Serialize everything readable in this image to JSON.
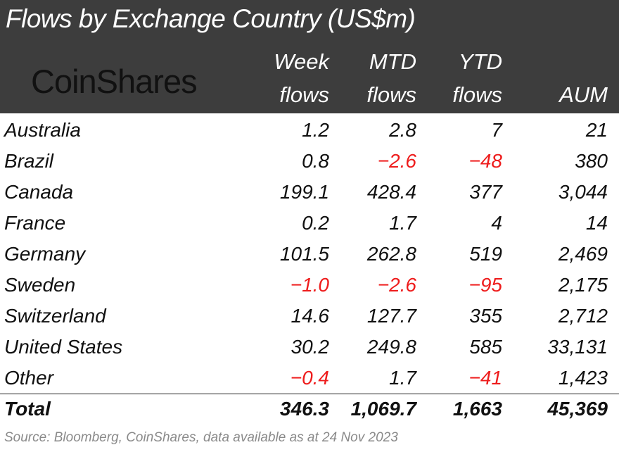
{
  "title": "Flows by Exchange Country (US$m)",
  "logo": "CoinShares",
  "columns": [
    {
      "line1": "Week",
      "line2": "flows"
    },
    {
      "line1": "MTD",
      "line2": "flows"
    },
    {
      "line1": "YTD",
      "line2": "flows"
    },
    {
      "line1": "",
      "line2": "AUM"
    }
  ],
  "colors": {
    "negative": "#ee1c1c",
    "header_bg": "#3d3d3d"
  },
  "rows": [
    {
      "name": "Australia",
      "week": "1.2",
      "mtd": "2.8",
      "ytd": "7",
      "aum": "21"
    },
    {
      "name": "Brazil",
      "week": "0.8",
      "mtd": "-2.6",
      "ytd": "-48",
      "aum": "380"
    },
    {
      "name": "Canada",
      "week": "199.1",
      "mtd": "428.4",
      "ytd": "377",
      "aum": "3,044"
    },
    {
      "name": "France",
      "week": "0.2",
      "mtd": "1.7",
      "ytd": "4",
      "aum": "14"
    },
    {
      "name": "Germany",
      "week": "101.5",
      "mtd": "262.8",
      "ytd": "519",
      "aum": "2,469"
    },
    {
      "name": "Sweden",
      "week": "-1.0",
      "mtd": "-2.6",
      "ytd": "-95",
      "aum": "2,175"
    },
    {
      "name": "Switzerland",
      "week": "14.6",
      "mtd": "127.7",
      "ytd": "355",
      "aum": "2,712"
    },
    {
      "name": "United States",
      "week": "30.2",
      "mtd": "249.8",
      "ytd": "585",
      "aum": "33,131"
    },
    {
      "name": "Other",
      "week": "-0.4",
      "mtd": "1.7",
      "ytd": "-41",
      "aum": "1,423"
    }
  ],
  "total": {
    "name": "Total",
    "week": "346.3",
    "mtd": "1,069.7",
    "ytd": "1,663",
    "aum": "45,369"
  },
  "source": "Source: Bloomberg, CoinShares, data available as at 24 Nov 2023",
  "chart_data": {
    "type": "table",
    "title": "Flows by Exchange Country (US$m)",
    "headers": [
      "",
      "Week flows",
      "MTD flows",
      "YTD flows",
      "AUM"
    ],
    "categories": [
      "Australia",
      "Brazil",
      "Canada",
      "France",
      "Germany",
      "Sweden",
      "Switzerland",
      "United States",
      "Other",
      "Total"
    ],
    "series": [
      {
        "name": "Week flows",
        "values": [
          1.2,
          0.8,
          199.1,
          0.2,
          101.5,
          -1.0,
          14.6,
          30.2,
          -0.4,
          346.3
        ]
      },
      {
        "name": "MTD flows",
        "values": [
          2.8,
          -2.6,
          428.4,
          1.7,
          262.8,
          -2.6,
          127.7,
          249.8,
          1.7,
          1069.7
        ]
      },
      {
        "name": "YTD flows",
        "values": [
          7,
          -48,
          377,
          4,
          519,
          -95,
          355,
          585,
          -41,
          1663
        ]
      },
      {
        "name": "AUM",
        "values": [
          21,
          380,
          3044,
          14,
          2469,
          2175,
          2712,
          33131,
          1423,
          45369
        ]
      }
    ]
  }
}
